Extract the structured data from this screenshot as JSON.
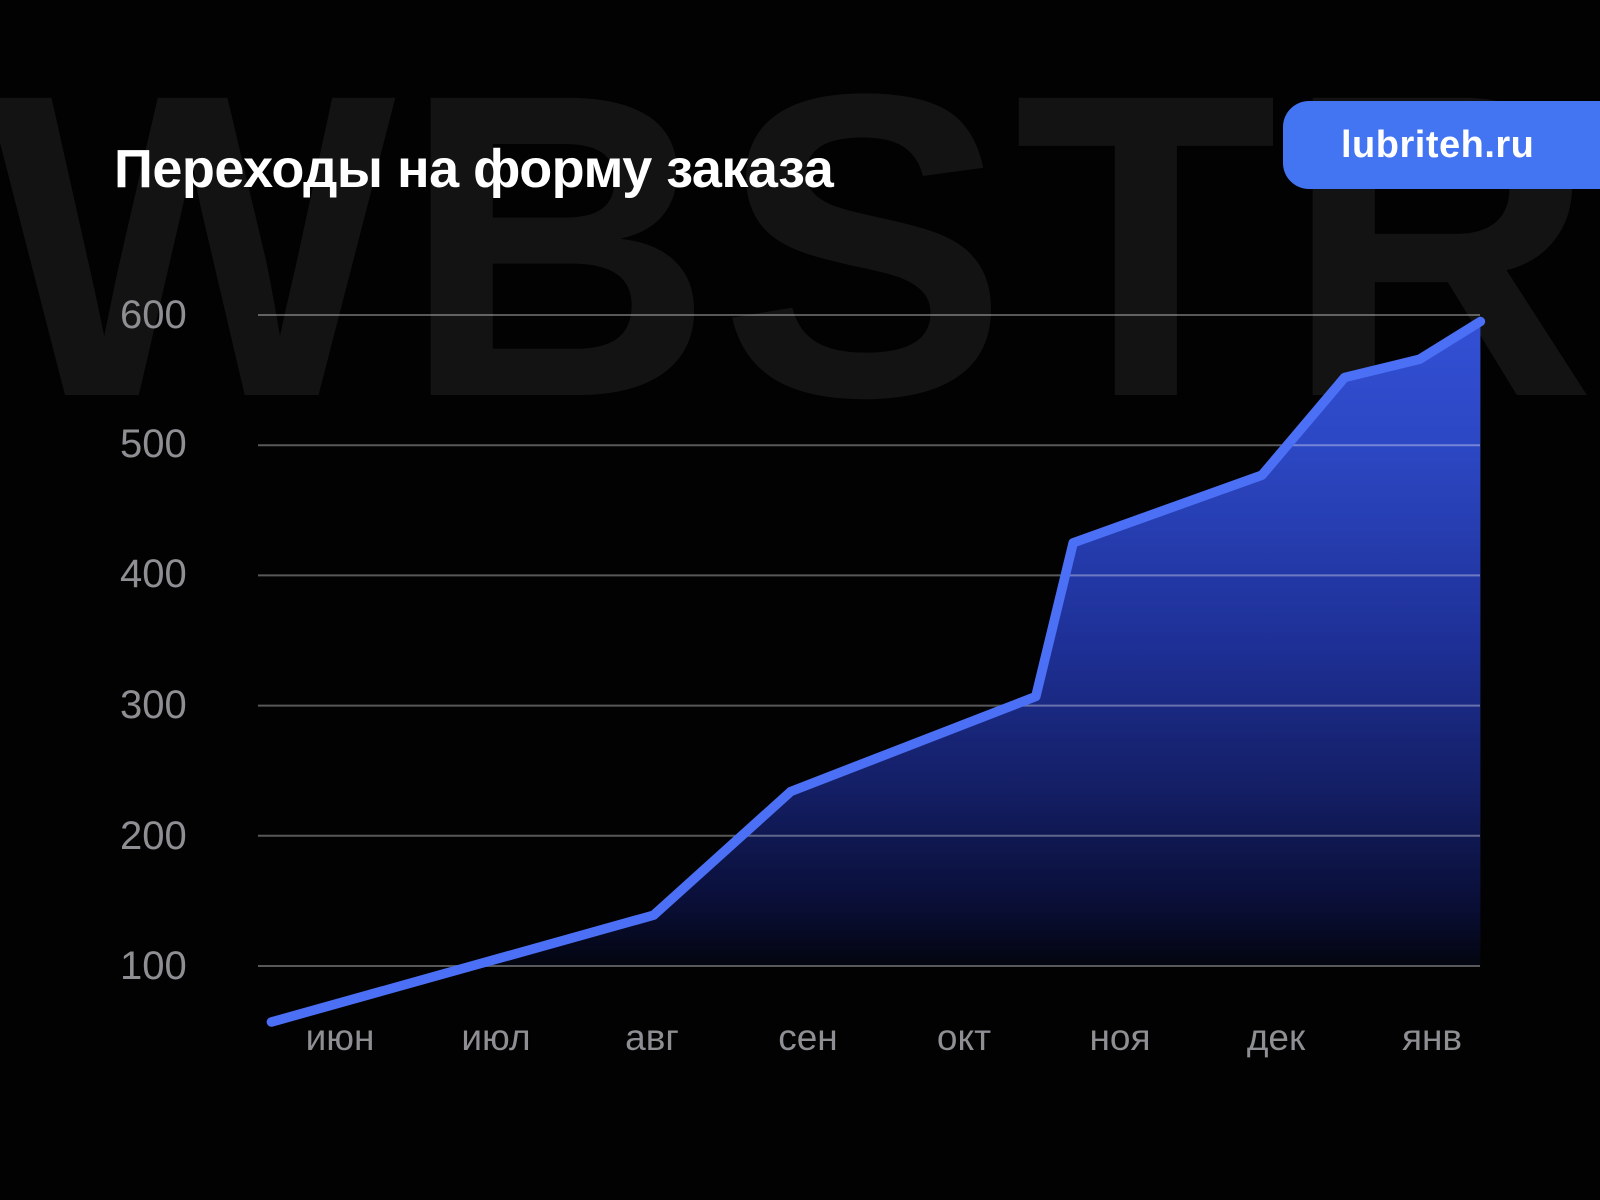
{
  "page": {
    "title": "Переходы на форму заказа",
    "badge_label": "lubriteh.ru",
    "watermark": "WBSTR",
    "colors": {
      "background": "#020203",
      "badge_blue": "#4374f1",
      "line_blue": "#4b70f5",
      "area_gradient_top": "#3350d5",
      "area_gradient_mid": "#1e3097",
      "area_gradient_low": "#0a0f38",
      "area_gradient_bottom": "#03050f",
      "axis_text": "#8e8e93",
      "gridline": "rgba(255,255,255,0.34)",
      "watermark_text": "#131313",
      "title_text": "#ffffff"
    }
  },
  "chart_data": {
    "type": "area",
    "title": "Переходы на форму заказа",
    "x_categories": [
      "июн",
      "июл",
      "авг",
      "сен",
      "окт",
      "ноя",
      "дек",
      "янв"
    ],
    "values": [
      70,
      105,
      140,
      240,
      285,
      440,
      485,
      570
    ],
    "y_ticks": [
      600,
      500,
      400,
      300,
      200,
      100
    ],
    "ylim": [
      100,
      600
    ],
    "xlabel": "",
    "ylabel": "",
    "grid": "horizontal",
    "legend": "none",
    "line_vertices": [
      [
        -0.44,
        57
      ],
      [
        2.01,
        139
      ],
      [
        2.89,
        234
      ],
      [
        4.46,
        307
      ],
      [
        4.7,
        425
      ],
      [
        5.91,
        477
      ],
      [
        6.44,
        552
      ],
      [
        6.92,
        566
      ],
      [
        7.31,
        595
      ]
    ]
  }
}
